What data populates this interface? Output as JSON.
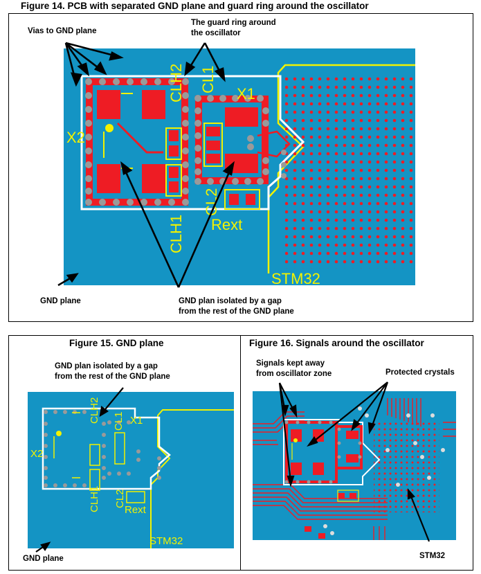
{
  "fig14": {
    "title": "Figure 14. PCB with separated GND plane and guard ring around the oscillator",
    "ann_vias": "Vias to GND plane",
    "ann_guard_1": "The guard ring around",
    "ann_guard_2": "the oscillator",
    "ann_gnd_plane": "GND plane",
    "ann_isolated_1": "GND plan isolated by a gap",
    "ann_isolated_2": "from the rest of the GND plane",
    "silk_x2": "X2",
    "silk_clh2": "CLH2",
    "silk_cl1": "CL1",
    "silk_x1": "X1",
    "silk_clh1": "CLH1",
    "silk_cl2": "CL2",
    "silk_rext": "Rext",
    "silk_stm32": "STM32"
  },
  "fig15": {
    "title": "Figure 15. GND plane",
    "ann_isolated_1": "GND plan isolated by a gap",
    "ann_isolated_2": "from the rest of the GND plane",
    "ann_gnd_plane": "GND plane",
    "silk_x2": "X2",
    "silk_clh2": "CLH2",
    "silk_cl1": "CL1",
    "silk_x1": "X1",
    "silk_clh1": "CLH1",
    "silk_cl2": "CL2",
    "silk_rext": "Rext",
    "silk_stm32": "STM32"
  },
  "fig16": {
    "title": "Figure 16. Signals around the oscillator",
    "ann_signals_1": "Signals kept away",
    "ann_signals_2": "from oscillator zone",
    "ann_protected": "Protected crystals",
    "ann_stm32": "STM32"
  },
  "colors": {
    "gnd_blue": "#1494c4",
    "pad_red": "#ee1c24",
    "silk_yellow": "#f2f200",
    "ring_white": "#ffffff",
    "via_gray": "#9a9a9a"
  }
}
